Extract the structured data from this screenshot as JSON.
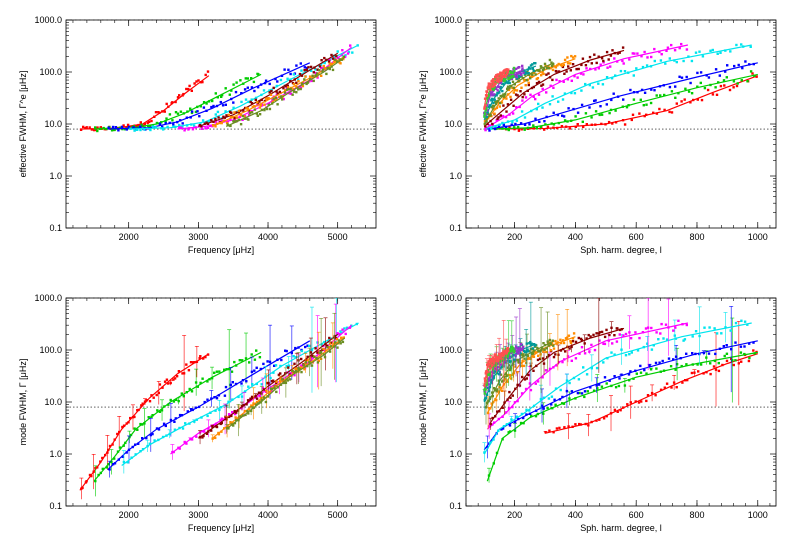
{
  "chart_data": [
    {
      "type": "scatter",
      "panel": "top-left",
      "xlabel": "Frequency [μHz]",
      "ylabel": "effective FWHM, Γ^e [μHz]",
      "xscale": "linear",
      "yscale": "log",
      "xlim": [
        1100,
        5550
      ],
      "ylim": [
        0.1,
        1000
      ],
      "xticks": [
        {
          "v": 2000,
          "label": "2000"
        },
        {
          "v": 3000,
          "label": "3000"
        },
        {
          "v": 4000,
          "label": "4000"
        },
        {
          "v": 5000,
          "label": "5000"
        }
      ],
      "yticks": [
        {
          "v": 0.1,
          "label": "0.1"
        },
        {
          "v": 1,
          "label": "1.0"
        },
        {
          "v": 10,
          "label": "10.0"
        },
        {
          "v": 100,
          "label": "100.0"
        },
        {
          "v": 1000,
          "label": "1000.0"
        }
      ],
      "hlines": [
        8
      ],
      "series": [
        {
          "name": "red",
          "color": "#ff0000",
          "x": [
            1300,
            1800,
            2200,
            2500,
            2800,
            3150
          ],
          "y": [
            8,
            8.2,
            10,
            18,
            38,
            85
          ]
        },
        {
          "name": "green",
          "color": "#00cc00",
          "x": [
            1500,
            2000,
            2400,
            2800,
            3200,
            3900
          ],
          "y": [
            8,
            8.2,
            10,
            16,
            30,
            90
          ]
        },
        {
          "name": "blue",
          "color": "#0000ff",
          "x": [
            1700,
            2300,
            2700,
            3200,
            3800,
            4600
          ],
          "y": [
            8,
            8.5,
            11,
            20,
            50,
            150
          ]
        },
        {
          "name": "cyan",
          "color": "#00e5ee",
          "x": [
            2000,
            2600,
            3100,
            3600,
            4300,
            5300
          ],
          "y": [
            8,
            8.5,
            11,
            22,
            70,
            330
          ]
        },
        {
          "name": "magenta",
          "color": "#ff00ff",
          "x": [
            2700,
            3100,
            3500,
            4000,
            4600,
            5200
          ],
          "y": [
            8,
            9,
            12,
            25,
            70,
            300
          ]
        },
        {
          "name": "brown",
          "color": "#8b0000",
          "x": [
            3000,
            3500,
            4000,
            4500,
            5000
          ],
          "y": [
            9,
            15,
            35,
            90,
            230
          ]
        },
        {
          "name": "orange",
          "color": "#ff8c00",
          "x": [
            3200,
            3700,
            4200,
            4700,
            5100
          ],
          "y": [
            9,
            18,
            40,
            90,
            200
          ]
        },
        {
          "name": "olive",
          "color": "#6b8e23",
          "x": [
            3400,
            3900,
            4300,
            4800,
            5100
          ],
          "y": [
            9,
            18,
            40,
            100,
            190
          ]
        }
      ]
    },
    {
      "type": "scatter",
      "panel": "top-right",
      "xlabel": "Sph. harm. degree, l",
      "ylabel": "effective FWHM, Γ^e [μHz]",
      "xscale": "linear",
      "yscale": "log",
      "xlim": [
        40,
        1060
      ],
      "ylim": [
        0.1,
        1000
      ],
      "xticks": [
        {
          "v": 200,
          "label": "200"
        },
        {
          "v": 400,
          "label": "400"
        },
        {
          "v": 600,
          "label": "600"
        },
        {
          "v": 800,
          "label": "800"
        },
        {
          "v": 1000,
          "label": "1000"
        }
      ],
      "yticks": [
        {
          "v": 0.1,
          "label": "0.1"
        },
        {
          "v": 1,
          "label": "1.0"
        },
        {
          "v": 10,
          "label": "10.0"
        },
        {
          "v": 100,
          "label": "100.0"
        },
        {
          "v": 1000,
          "label": "1000.0"
        }
      ],
      "hlines": [
        8
      ],
      "series": [
        {
          "name": "red",
          "color": "#ff0000",
          "x": [
            150,
            300,
            500,
            700,
            850,
            1000
          ],
          "y": [
            8,
            8.2,
            10,
            18,
            40,
            85
          ]
        },
        {
          "name": "green",
          "color": "#00cc00",
          "x": [
            120,
            250,
            400,
            600,
            800,
            1000
          ],
          "y": [
            8,
            8.5,
            12,
            25,
            50,
            90
          ]
        },
        {
          "name": "blue",
          "color": "#0000ff",
          "x": [
            110,
            230,
            350,
            550,
            800,
            1000
          ],
          "y": [
            8,
            10,
            16,
            35,
            80,
            150
          ]
        },
        {
          "name": "cyan",
          "color": "#00e5ee",
          "x": [
            100,
            200,
            300,
            450,
            700,
            980
          ],
          "y": [
            8,
            12,
            25,
            60,
            160,
            330
          ]
        },
        {
          "name": "magenta",
          "color": "#ff00ff",
          "x": [
            100,
            180,
            260,
            400,
            560,
            770
          ],
          "y": [
            8,
            15,
            35,
            90,
            180,
            330
          ]
        },
        {
          "name": "brown",
          "color": "#8b0000",
          "x": [
            100,
            160,
            230,
            330,
            450,
            560
          ],
          "y": [
            9,
            18,
            40,
            90,
            170,
            260
          ]
        },
        {
          "name": "orange",
          "color": "#ff8c00",
          "x": [
            100,
            150,
            210,
            300,
            400
          ],
          "y": [
            10,
            25,
            55,
            110,
            180
          ]
        },
        {
          "name": "olive",
          "color": "#6b8e23",
          "x": [
            100,
            140,
            190,
            260,
            330
          ],
          "y": [
            10,
            25,
            55,
            100,
            150
          ]
        },
        {
          "name": "teal",
          "color": "#009999",
          "x": [
            100,
            130,
            170,
            220,
            270
          ],
          "y": [
            12,
            30,
            60,
            100,
            130
          ]
        },
        {
          "name": "purple",
          "color": "#9932cc",
          "x": [
            100,
            120,
            150,
            190,
            230
          ],
          "y": [
            14,
            35,
            60,
            90,
            110
          ]
        },
        {
          "name": "lime",
          "color": "#32cd32",
          "x": [
            100,
            115,
            140,
            170,
            200
          ],
          "y": [
            15,
            40,
            65,
            85,
            100
          ]
        },
        {
          "name": "coral",
          "color": "#ff5050",
          "x": [
            100,
            110,
            130,
            160,
            180
          ],
          "y": [
            20,
            45,
            65,
            85,
            95
          ]
        }
      ]
    },
    {
      "type": "scatter",
      "panel": "bottom-left",
      "xlabel": "Frequency [μHz]",
      "ylabel": "mode FWHM, Γ [μHz]",
      "xscale": "linear",
      "yscale": "log",
      "xlim": [
        1100,
        5550
      ],
      "ylim": [
        0.1,
        1000
      ],
      "xticks": [
        {
          "v": 2000,
          "label": "2000"
        },
        {
          "v": 3000,
          "label": "3000"
        },
        {
          "v": 4000,
          "label": "4000"
        },
        {
          "v": 5000,
          "label": "5000"
        }
      ],
      "yticks": [
        {
          "v": 0.1,
          "label": "0.1"
        },
        {
          "v": 1,
          "label": "1.0"
        },
        {
          "v": 10,
          "label": "10.0"
        },
        {
          "v": 100,
          "label": "100.0"
        },
        {
          "v": 1000,
          "label": "1000.0"
        }
      ],
      "hlines": [
        8
      ],
      "series": [
        {
          "name": "red",
          "color": "#ff0000",
          "x": [
            1300,
            1600,
            1900,
            2300,
            2700,
            3150
          ],
          "y": [
            0.2,
            0.7,
            3,
            12,
            35,
            85
          ]
        },
        {
          "name": "green",
          "color": "#00cc00",
          "x": [
            1500,
            1800,
            2100,
            2600,
            3200,
            3900
          ],
          "y": [
            0.3,
            0.9,
            3,
            10,
            30,
            90
          ]
        },
        {
          "name": "blue",
          "color": "#0000ff",
          "x": [
            1700,
            2000,
            2400,
            3000,
            3800,
            4600
          ],
          "y": [
            0.5,
            1.2,
            3,
            8,
            35,
            150
          ]
        },
        {
          "name": "cyan",
          "color": "#00e5ee",
          "x": [
            1900,
            2300,
            2800,
            3400,
            4200,
            5300
          ],
          "y": [
            0.6,
            1.5,
            3.5,
            9,
            50,
            330
          ]
        },
        {
          "name": "magenta",
          "color": "#ff00ff",
          "x": [
            2600,
            3000,
            3500,
            4000,
            4600,
            5200
          ],
          "y": [
            1,
            2.5,
            6,
            18,
            60,
            300
          ]
        },
        {
          "name": "brown",
          "color": "#8b0000",
          "x": [
            3000,
            3500,
            4000,
            4500,
            5000
          ],
          "y": [
            2,
            6,
            20,
            60,
            200
          ]
        },
        {
          "name": "orange",
          "color": "#ff8c00",
          "x": [
            3200,
            3700,
            4200,
            4700,
            5100
          ],
          "y": [
            2,
            7,
            25,
            70,
            180
          ]
        },
        {
          "name": "olive",
          "color": "#6b8e23",
          "x": [
            3400,
            3900,
            4300,
            4800,
            5100
          ],
          "y": [
            3,
            10,
            30,
            80,
            170
          ]
        }
      ]
    },
    {
      "type": "scatter",
      "panel": "bottom-right",
      "xlabel": "Sph. harm. degree, l",
      "ylabel": "mode FWHM, Γ [μHz]",
      "xscale": "linear",
      "yscale": "log",
      "xlim": [
        40,
        1060
      ],
      "ylim": [
        0.1,
        1000
      ],
      "xticks": [
        {
          "v": 200,
          "label": "200"
        },
        {
          "v": 400,
          "label": "400"
        },
        {
          "v": 600,
          "label": "600"
        },
        {
          "v": 800,
          "label": "800"
        },
        {
          "v": 1000,
          "label": "1000"
        }
      ],
      "yticks": [
        {
          "v": 0.1,
          "label": "0.1"
        },
        {
          "v": 1,
          "label": "1.0"
        },
        {
          "v": 10,
          "label": "10.0"
        },
        {
          "v": 100,
          "label": "100.0"
        },
        {
          "v": 1000,
          "label": "1000.0"
        }
      ],
      "hlines": [
        8
      ],
      "series": [
        {
          "name": "red",
          "color": "#ff0000",
          "x": [
            300,
            450,
            600,
            750,
            900,
            1000
          ],
          "y": [
            2.5,
            4,
            10,
            25,
            55,
            85
          ]
        },
        {
          "name": "green",
          "color": "#00cc00",
          "x": [
            110,
            160,
            250,
            400,
            600,
            800,
            1000
          ],
          "y": [
            0.3,
            2,
            5,
            12,
            30,
            55,
            90
          ]
        },
        {
          "name": "blue",
          "color": "#0000ff",
          "x": [
            100,
            150,
            250,
            400,
            600,
            800,
            1000
          ],
          "y": [
            1.2,
            3,
            6,
            16,
            40,
            85,
            150
          ]
        },
        {
          "name": "cyan",
          "color": "#00e5ee",
          "x": [
            100,
            150,
            230,
            350,
            500,
            750,
            980
          ],
          "y": [
            1,
            3,
            6,
            20,
            70,
            180,
            330
          ]
        },
        {
          "name": "magenta",
          "color": "#ff00ff",
          "x": [
            110,
            170,
            250,
            350,
            500,
            770
          ],
          "y": [
            3,
            6,
            20,
            60,
            150,
            330
          ]
        },
        {
          "name": "brown",
          "color": "#8b0000",
          "x": [
            120,
            180,
            250,
            330,
            450,
            560
          ],
          "y": [
            4,
            12,
            40,
            90,
            170,
            260
          ]
        },
        {
          "name": "orange",
          "color": "#ff8c00",
          "x": [
            110,
            160,
            220,
            300,
            400
          ],
          "y": [
            6,
            20,
            55,
            110,
            180
          ]
        },
        {
          "name": "olive",
          "color": "#6b8e23",
          "x": [
            105,
            150,
            200,
            270,
            330
          ],
          "y": [
            8,
            25,
            60,
            100,
            150
          ]
        },
        {
          "name": "teal",
          "color": "#009999",
          "x": [
            100,
            130,
            170,
            220,
            270
          ],
          "y": [
            10,
            30,
            60,
            100,
            130
          ]
        },
        {
          "name": "purple",
          "color": "#9932cc",
          "x": [
            100,
            120,
            150,
            190,
            230
          ],
          "y": [
            14,
            35,
            60,
            90,
            110
          ]
        },
        {
          "name": "lime",
          "color": "#32cd32",
          "x": [
            100,
            115,
            140,
            170,
            200
          ],
          "y": [
            15,
            40,
            65,
            85,
            100
          ]
        },
        {
          "name": "coral",
          "color": "#ff5050",
          "x": [
            100,
            110,
            130,
            160,
            180
          ],
          "y": [
            20,
            45,
            65,
            85,
            95
          ]
        }
      ]
    }
  ]
}
